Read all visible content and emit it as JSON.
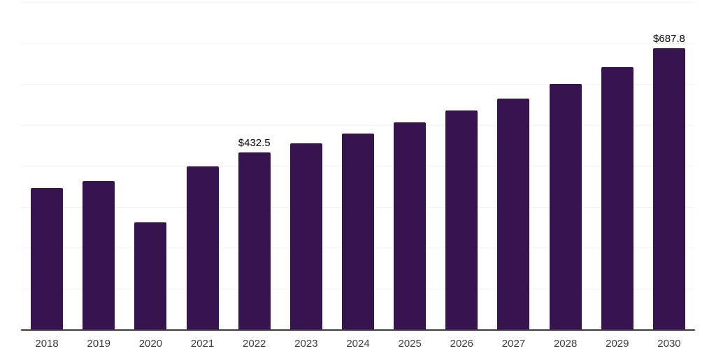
{
  "chart_data": {
    "type": "bar",
    "title": "",
    "xlabel": "",
    "ylabel": "",
    "categories": [
      "2018",
      "2019",
      "2020",
      "2021",
      "2022",
      "2023",
      "2024",
      "2025",
      "2026",
      "2027",
      "2028",
      "2029",
      "2030"
    ],
    "values": [
      345.0,
      362.5,
      262.0,
      399.0,
      432.5,
      454.0,
      478.0,
      506.0,
      534.5,
      564.0,
      600.5,
      641.0,
      687.8
    ],
    "bar_labels": [
      "",
      "",
      "",
      "",
      "$432.5",
      "",
      "",
      "",
      "",
      "",
      "",
      "",
      "$687.8"
    ],
    "ylim": [
      0,
      800
    ],
    "grid_interval": 100,
    "grid": "horizontal",
    "legend": "none",
    "colors": {
      "bar": "#36124e",
      "gridline": "#f2f2f2",
      "axis_line": "#3d3d3d",
      "tick_label": "#3d3d3d",
      "bar_label": "#0a0a0a",
      "background": "#ffffff"
    }
  }
}
